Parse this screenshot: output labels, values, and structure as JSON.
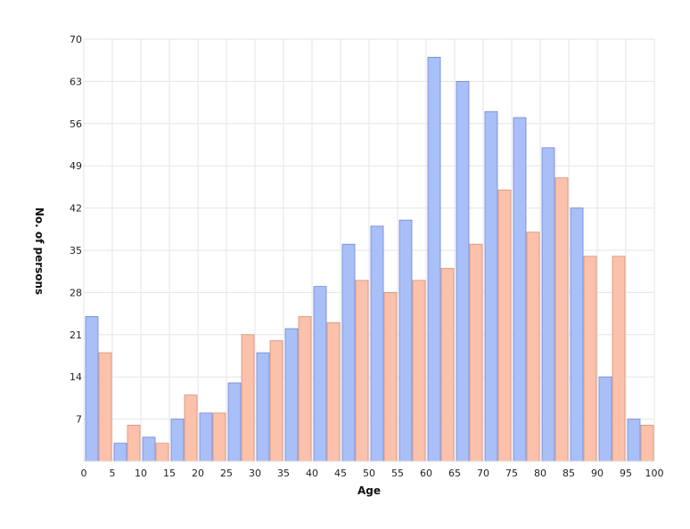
{
  "chart_data": {
    "type": "bar",
    "xlabel": "Age",
    "ylabel": "No. of persons",
    "xlim": [
      0,
      100
    ],
    "ylim": [
      0,
      70
    ],
    "x_ticks": [
      "0",
      "5",
      "10",
      "15",
      "20",
      "25",
      "30",
      "35",
      "40",
      "45",
      "50",
      "55",
      "60",
      "65",
      "70",
      "75",
      "80",
      "85",
      "90",
      "95",
      "100"
    ],
    "y_ticks": [
      "7",
      "14",
      "21",
      "28",
      "35",
      "42",
      "49",
      "56",
      "63",
      "70"
    ],
    "grid": true,
    "legend": "none",
    "colors": {
      "series_a_fill": "#a9bff7",
      "series_a_stroke": "#6f86d6",
      "series_b_fill": "#fbc1ab",
      "series_b_stroke": "#d98f78"
    },
    "bins": [
      [
        0,
        24,
        18
      ],
      [
        5,
        3,
        6
      ],
      [
        10,
        4,
        3
      ],
      [
        15,
        7,
        11
      ],
      [
        20,
        8,
        8
      ],
      [
        25,
        13,
        21
      ],
      [
        30,
        18,
        20
      ],
      [
        35,
        22,
        24
      ],
      [
        40,
        29,
        23
      ],
      [
        45,
        36,
        30
      ],
      [
        50,
        39,
        28
      ],
      [
        55,
        40,
        30
      ],
      [
        60,
        67,
        32
      ],
      [
        65,
        63,
        36
      ],
      [
        70,
        58,
        45
      ],
      [
        75,
        57,
        38
      ],
      [
        80,
        52,
        47
      ],
      [
        85,
        42,
        34
      ],
      [
        90,
        14,
        34
      ],
      [
        95,
        7,
        6
      ]
    ]
  }
}
